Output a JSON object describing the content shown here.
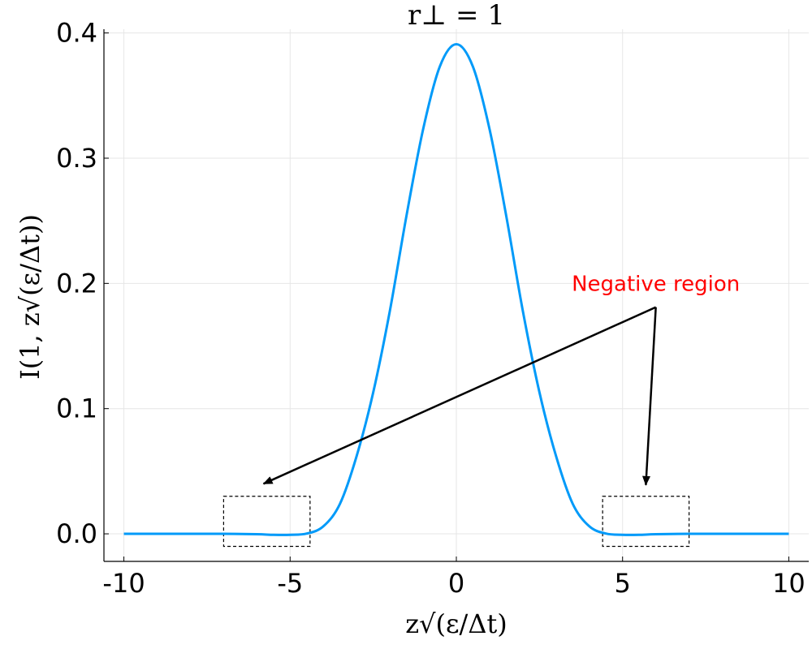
{
  "chart_data": {
    "type": "line",
    "title": "r⊥ = 1",
    "xlabel": "z√(ε/Δt)",
    "ylabel": "I(1, z√(ε/Δt))",
    "xlim": [
      -10.6,
      10.6
    ],
    "ylim": [
      -0.022,
      0.403
    ],
    "x_ticks": [
      -10,
      -5,
      0,
      5,
      10
    ],
    "x_tick_labels": [
      "-10",
      "-5",
      "0",
      "5",
      "10"
    ],
    "y_ticks": [
      0.0,
      0.1,
      0.2,
      0.3,
      0.4
    ],
    "y_tick_labels": [
      "0.0",
      "0.1",
      "0.2",
      "0.3",
      "0.4"
    ],
    "grid": true,
    "series": [
      {
        "color": "#009af9",
        "x": [
          -10,
          -9,
          -8,
          -7,
          -6,
          -5.5,
          -5,
          -4.5,
          -4,
          -3.5,
          -3,
          -2.5,
          -2,
          -1.5,
          -1,
          -0.5,
          0,
          0.5,
          1,
          1.5,
          2,
          2.5,
          3,
          3.5,
          4,
          4.5,
          5,
          5.5,
          6,
          7,
          8,
          9,
          10
        ],
        "y": [
          0.0,
          0.0,
          0.0,
          0.0,
          -0.0003,
          -0.0008,
          -0.0008,
          0.0002,
          0.006,
          0.024,
          0.062,
          0.113,
          0.178,
          0.254,
          0.323,
          0.373,
          0.391,
          0.373,
          0.323,
          0.254,
          0.178,
          0.113,
          0.062,
          0.024,
          0.006,
          0.0002,
          -0.0008,
          -0.0008,
          -0.0003,
          0.0,
          0.0,
          0.0,
          0.0
        ]
      }
    ],
    "annotation": {
      "text": "Negative region",
      "color": "#ff0000",
      "text_pos": [
        6.0,
        0.2
      ],
      "arrow_origin": [
        6.0,
        0.181
      ],
      "arrow_targets": [
        [
          -5.8,
          0.04
        ],
        [
          5.7,
          0.039
        ]
      ]
    },
    "highlight_boxes": [
      {
        "x": [
          -7.0,
          -4.4
        ],
        "y": [
          -0.01,
          0.03
        ]
      },
      {
        "x": [
          4.4,
          7.0
        ],
        "y": [
          -0.01,
          0.03
        ]
      }
    ]
  }
}
